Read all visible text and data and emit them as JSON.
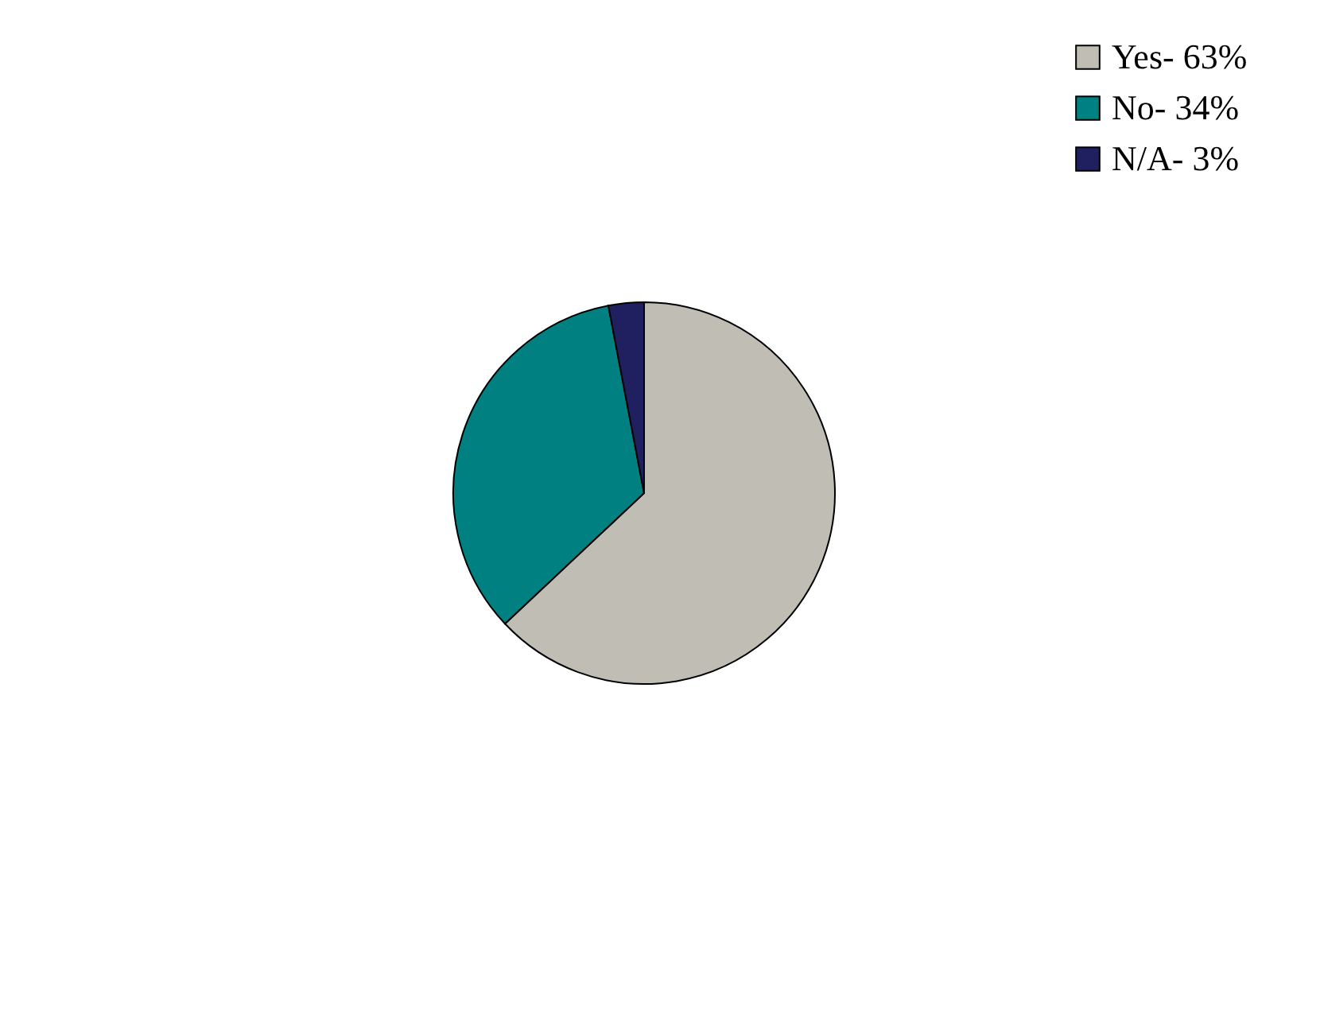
{
  "chart_data": {
    "type": "pie",
    "categories": [
      "Yes- 63%",
      "No- 34%",
      "N/A- 3%"
    ],
    "values": [
      63,
      34,
      3
    ],
    "colors": [
      "#c0bdb5",
      "#008080",
      "#202060"
    ],
    "legend": "top right"
  }
}
